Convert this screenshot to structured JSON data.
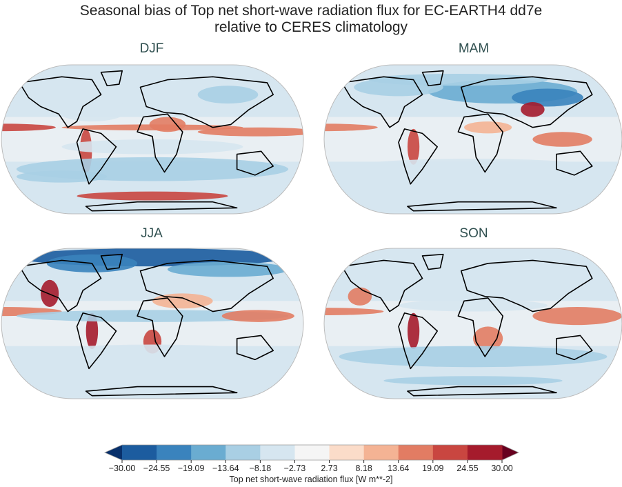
{
  "title_line1": "Seasonal bias of Top net short-wave radiation flux for EC-EARTH4 dd7e",
  "title_line2": "relative to CERES climatology",
  "panels": [
    {
      "label": "DJF"
    },
    {
      "label": "MAM"
    },
    {
      "label": "JJA"
    },
    {
      "label": "SON"
    }
  ],
  "colorbar": {
    "label": "Top net short-wave radiation flux [W m**-2]",
    "ticks": [
      "−30.00",
      "−24.55",
      "−19.09",
      "−13.64",
      "−8.18",
      "−2.73",
      "2.73",
      "8.18",
      "13.64",
      "19.09",
      "24.55",
      "30.00"
    ],
    "extend": "both",
    "colors": [
      "#1c5c9f",
      "#3a83bd",
      "#6aacd1",
      "#a9cfe4",
      "#d6e6f0",
      "#f5f5f5",
      "#fbdcc9",
      "#f4b394",
      "#e27c63",
      "#c94640",
      "#a51b2c"
    ],
    "under_color": "#08306b",
    "over_color": "#67001f"
  }
}
